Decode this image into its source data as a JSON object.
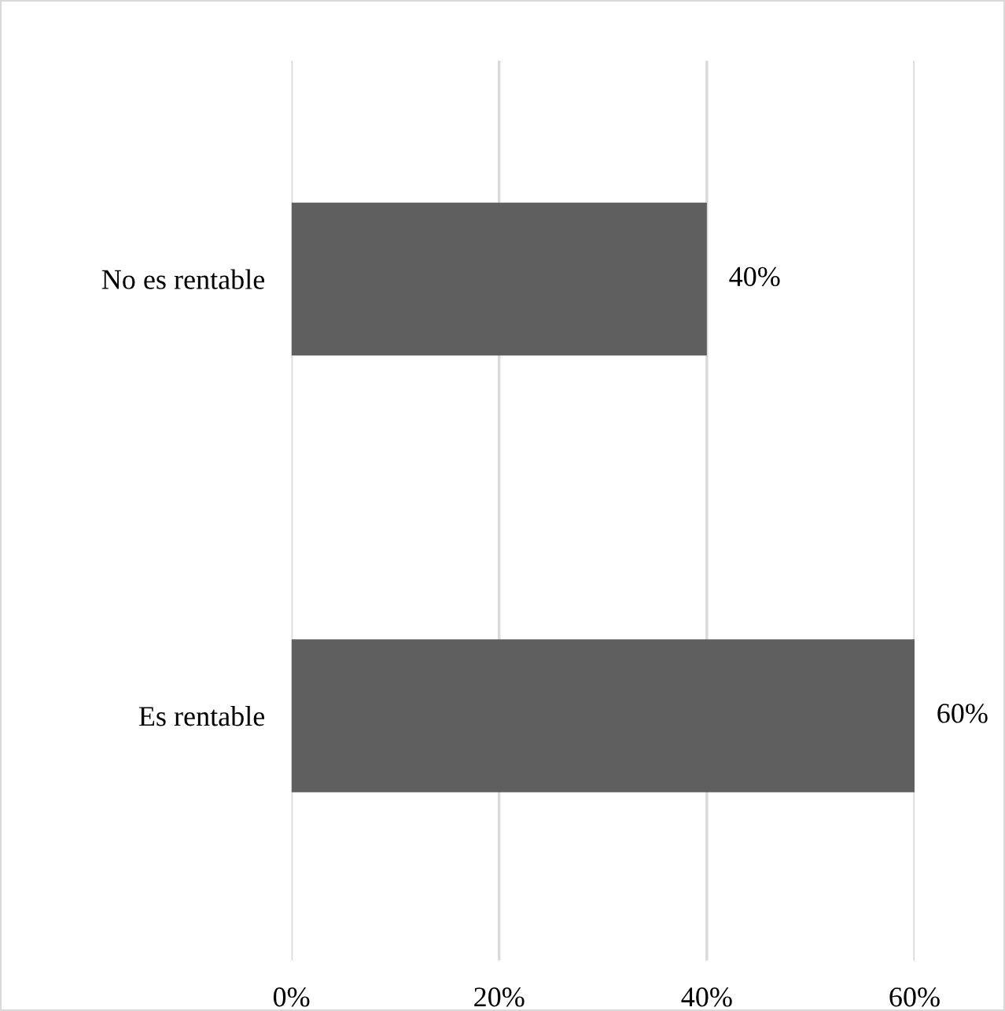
{
  "chart_data": {
    "type": "bar",
    "orientation": "horizontal",
    "categories": [
      "No es rentable",
      "Es rentable"
    ],
    "series": [
      {
        "color": "#5f5f5f",
        "values": [
          40,
          60
        ]
      }
    ],
    "value_labels": [
      "40%",
      "60%"
    ],
    "xlim": [
      0,
      60
    ],
    "xticks": [
      {
        "value": 0,
        "label": "0%"
      },
      {
        "value": 20,
        "label": "20%"
      },
      {
        "value": 40,
        "label": "40%"
      },
      {
        "value": 60,
        "label": "60%"
      }
    ],
    "grid": "x",
    "legend": false
  }
}
